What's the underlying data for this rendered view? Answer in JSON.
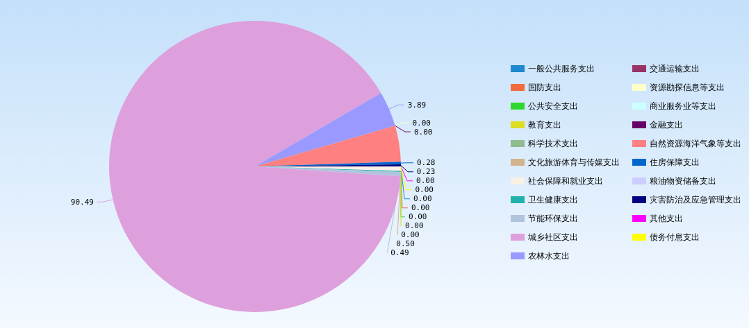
{
  "chart_data": {
    "type": "pie",
    "categories": [
      "一般公共服务支出",
      "国防支出",
      "公共安全支出",
      "教育支出",
      "科学技术支出",
      "文化旅游体育与传媒支出",
      "社会保障和就业支出",
      "卫生健康支出",
      "节能环保支出",
      "城乡社区支出",
      "农林水支出",
      "交通运输支出",
      "资源勘探信息等支出",
      "商业服务业等支出",
      "金融支出",
      "自然资源海洋气象等支出",
      "住房保障支出",
      "粮油物资储备支出",
      "灾害防治及应急管理支出",
      "其他支出",
      "债务付息支出"
    ],
    "values": [
      0,
      0,
      0,
      0,
      0,
      0,
      0.5,
      0.1,
      0.49,
      90.49,
      3.89,
      0,
      0,
      0,
      0,
      4.0,
      0.28,
      0,
      0.23,
      0,
      0
    ],
    "value_labels": [
      "0.00",
      "0.00",
      "0.00",
      "0.00",
      null,
      "0.00",
      "0.50",
      null,
      "0.49",
      "90.49",
      "3.89",
      null,
      "0.00",
      null,
      "0.00",
      null,
      "0.28",
      null,
      "0.23",
      "0.00",
      "0.00"
    ],
    "colors": [
      "#1e88d0",
      "#f26b3f",
      "#2ed82e",
      "#dddd22",
      "#8fbc8f",
      "#d2b48c",
      "#faf0e6",
      "#20b2aa",
      "#b0c4de",
      "#dda0dd",
      "#9999ff",
      "#993366",
      "#ffffcc",
      "#ccffff",
      "#660066",
      "#ff8080",
      "#0066cc",
      "#ccccff",
      "#000080",
      "#ff00ff",
      "#ffff00"
    ],
    "legend": "right"
  }
}
